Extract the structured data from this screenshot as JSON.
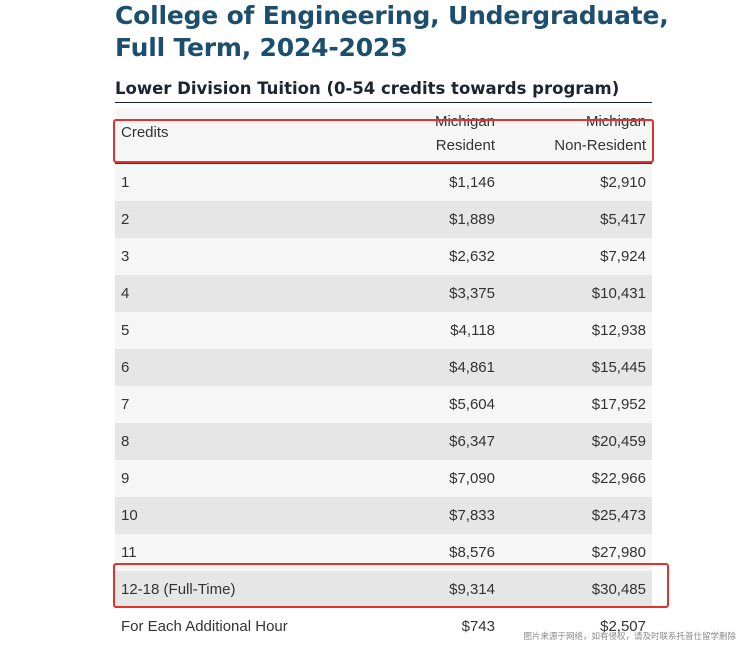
{
  "page": {
    "title": "College of Engineering, Undergraduate, Full Term, 2024-2025",
    "section_heading": "Lower Division Tuition (0-54 credits towards program)"
  },
  "table": {
    "headers": {
      "credits": "Credits",
      "resident_line1": "Michigan",
      "resident_line2": "Resident",
      "nonresident_line1": "Michigan",
      "nonresident_line2": "Non-Resident"
    },
    "rows": [
      {
        "credits": "1",
        "resident": "$1,146",
        "nonresident": "$2,910"
      },
      {
        "credits": "2",
        "resident": "$1,889",
        "nonresident": "$5,417"
      },
      {
        "credits": "3",
        "resident": "$2,632",
        "nonresident": "$7,924"
      },
      {
        "credits": "4",
        "resident": "$3,375",
        "nonresident": "$10,431"
      },
      {
        "credits": "5",
        "resident": "$4,118",
        "nonresident": "$12,938"
      },
      {
        "credits": "6",
        "resident": "$4,861",
        "nonresident": "$15,445"
      },
      {
        "credits": "7",
        "resident": "$5,604",
        "nonresident": "$17,952"
      },
      {
        "credits": "8",
        "resident": "$6,347",
        "nonresident": "$20,459"
      },
      {
        "credits": "9",
        "resident": "$7,090",
        "nonresident": "$22,966"
      },
      {
        "credits": "10",
        "resident": "$7,833",
        "nonresident": "$25,473"
      },
      {
        "credits": "11",
        "resident": "$8,576",
        "nonresident": "$27,980"
      },
      {
        "credits": "12-18 (Full-Time)",
        "resident": "$9,314",
        "nonresident": "$30,485"
      },
      {
        "credits": "For Each Additional Hour",
        "resident": "$743",
        "nonresident": "$2,507"
      }
    ]
  },
  "highlight_color": "#e0332c",
  "title_color": "#1c4f6f",
  "watermark": "图片来源于网络，如有侵权，请及时联系托普仕留学删除"
}
